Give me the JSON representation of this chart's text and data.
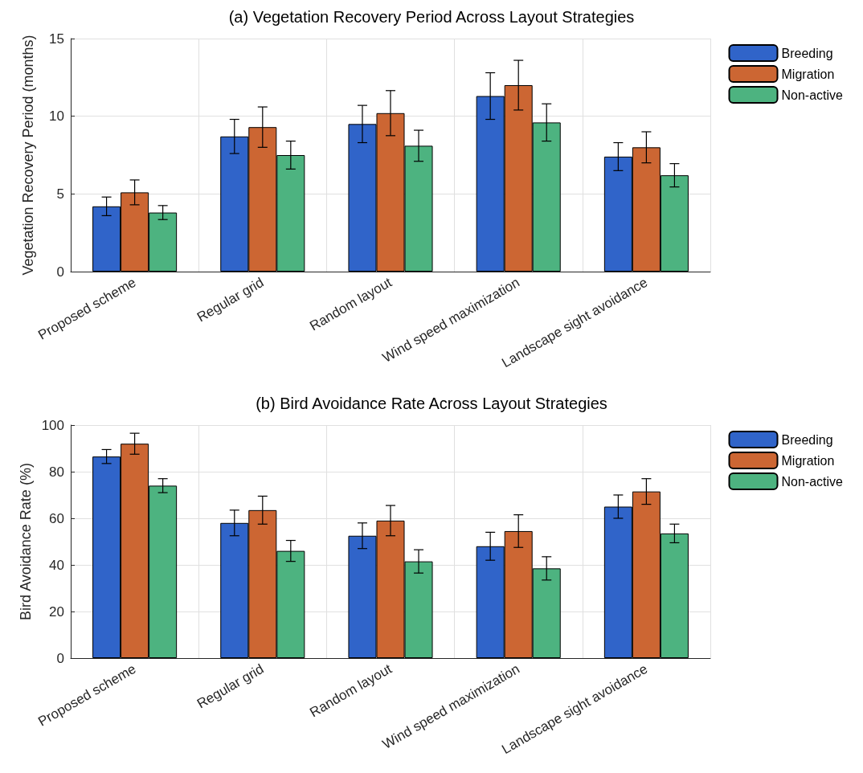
{
  "chart_data": [
    {
      "type": "bar",
      "title": "(a) Vegetation Recovery Period Across Layout Strategies",
      "ylabel": "Vegetation Recovery Period (months)",
      "categories": [
        "Proposed scheme",
        "Regular grid",
        "Random layout",
        "Wind speed maximization",
        "Landscape sight avoidance"
      ],
      "series": [
        {
          "name": "Breeding",
          "color": "#3064c9",
          "values": [
            4.2,
            8.7,
            9.5,
            11.3,
            7.4
          ],
          "errors": [
            0.6,
            1.1,
            1.2,
            1.5,
            0.9
          ]
        },
        {
          "name": "Migration",
          "color": "#cc6633",
          "values": [
            5.1,
            9.3,
            10.2,
            12.0,
            8.0
          ],
          "errors": [
            0.8,
            1.3,
            1.45,
            1.6,
            1.0
          ]
        },
        {
          "name": "Non-active",
          "color": "#4db380",
          "values": [
            3.8,
            7.5,
            8.1,
            9.6,
            6.2
          ],
          "errors": [
            0.45,
            0.9,
            1.0,
            1.2,
            0.75
          ]
        }
      ],
      "ylim": [
        0,
        15
      ],
      "yticks": [
        0,
        5,
        10,
        15
      ],
      "grid": true,
      "legend": "top right"
    },
    {
      "type": "bar",
      "title": "(b) Bird Avoidance Rate Across Layout Strategies",
      "ylabel": "Bird Avoidance Rate (%)",
      "categories": [
        "Proposed scheme",
        "Regular grid",
        "Random layout",
        "Wind speed maximization",
        "Landscape sight avoidance"
      ],
      "series": [
        {
          "name": "Breeding",
          "color": "#3064c9",
          "values": [
            86.5,
            58,
            52.5,
            48,
            65
          ],
          "errors": [
            3,
            5.5,
            5.5,
            6,
            5
          ]
        },
        {
          "name": "Migration",
          "color": "#cc6633",
          "values": [
            92,
            63.5,
            59,
            54.5,
            71.5
          ],
          "errors": [
            4.5,
            6,
            6.5,
            7,
            5.5
          ]
        },
        {
          "name": "Non-active",
          "color": "#4db380",
          "values": [
            74,
            46,
            41.5,
            38.5,
            53.5
          ],
          "errors": [
            3,
            4.5,
            5,
            5,
            4
          ]
        }
      ],
      "ylim": [
        0,
        100
      ],
      "yticks": [
        0,
        20,
        40,
        60,
        80,
        100
      ],
      "grid": true,
      "legend": "top right"
    }
  ]
}
